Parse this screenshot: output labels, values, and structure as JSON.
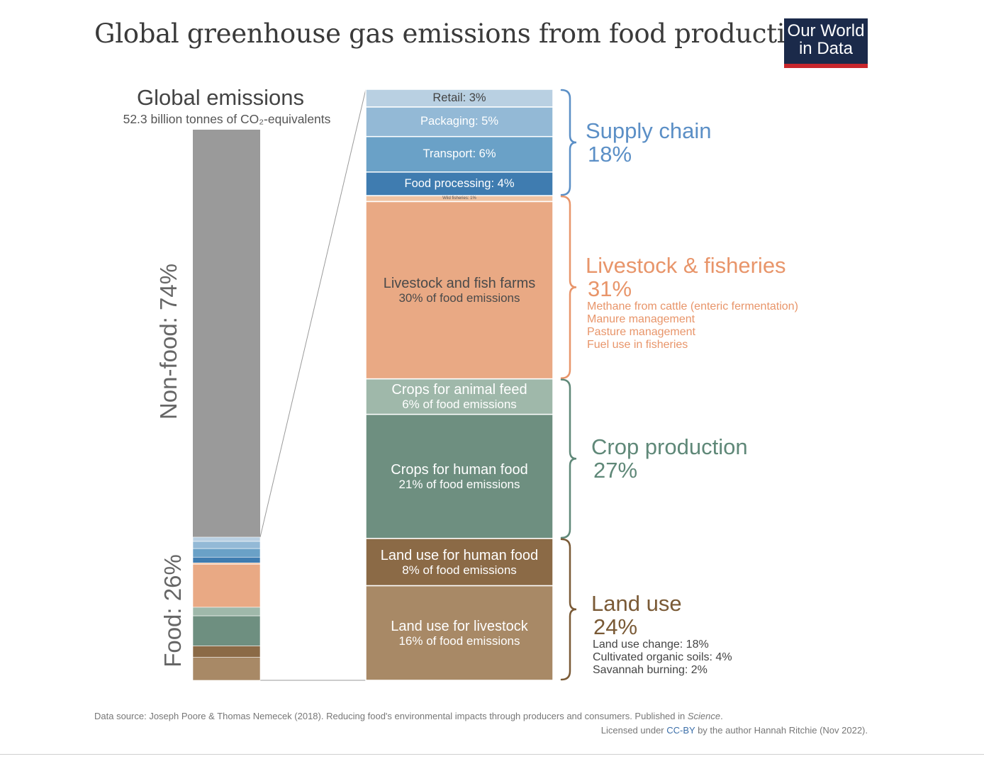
{
  "title": "Global greenhouse gas emissions from food production",
  "logo": {
    "line1": "Our World",
    "line2": "in Data"
  },
  "chart_data": {
    "type": "bar",
    "title": "Global greenhouse gas emissions from food production",
    "global": {
      "title": "Global emissions",
      "subtitle": "52.3 billion tonnes of CO₂-equivalents",
      "nonfood_label": "Non-food: 74%",
      "food_label": "Food: 26%",
      "nonfood_pct": 74,
      "food_pct": 26
    },
    "segments": [
      {
        "name": "Retail",
        "label": "Retail: 3%",
        "value": 3,
        "color": "#b9d0e2",
        "text_color": "#444444"
      },
      {
        "name": "Packaging",
        "label": "Packaging: 5%",
        "value": 5,
        "color": "#93b9d6",
        "text_color": "#ffffff"
      },
      {
        "name": "Transport",
        "label": "Transport: 6%",
        "value": 6,
        "color": "#6aa1c7",
        "text_color": "#ffffff"
      },
      {
        "name": "Food processing",
        "label": "Food processing: 4%",
        "value": 4,
        "color": "#3f7cb0",
        "text_color": "#ffffff"
      },
      {
        "name": "Wild fisheries",
        "label": "Wild fisheries: 1%",
        "value": 1,
        "color": "#f0c3a2",
        "text_color": "#555555"
      },
      {
        "name": "Livestock and fish farms",
        "label": "Livestock and fish farms",
        "sub": "30% of food emissions",
        "value": 30,
        "color": "#e9a984",
        "text_color": "#4a4a4a"
      },
      {
        "name": "Crops for animal feed",
        "label": "Crops for animal feed",
        "sub": "6% of food emissions",
        "value": 6,
        "color": "#9fb8aa",
        "text_color": "#ffffff"
      },
      {
        "name": "Crops for human food",
        "label": "Crops for human food",
        "sub": "21% of food emissions",
        "value": 21,
        "color": "#6e8f80",
        "text_color": "#ffffff"
      },
      {
        "name": "Land use for human food",
        "label": "Land use for human food",
        "sub": "8% of food emissions",
        "value": 8,
        "color": "#8b6a46",
        "text_color": "#ffffff"
      },
      {
        "name": "Land use for livestock",
        "label": "Land use for livestock",
        "sub": "16% of food emissions",
        "value": 16,
        "color": "#a88966",
        "text_color": "#ffffff"
      }
    ],
    "nonfood_color": "#9a9a9a",
    "groups": [
      {
        "name": "Supply chain",
        "pct": "18%",
        "color": "#5b8fc6",
        "details": []
      },
      {
        "name": "Livestock & fisheries",
        "pct": "31%",
        "color": "#e8956a",
        "details": [
          "Methane from cattle (enteric fermentation)",
          "Manure management",
          "Pasture management",
          "Fuel use in fisheries"
        ]
      },
      {
        "name": "Crop production",
        "pct": "27%",
        "color": "#5f8878",
        "details": []
      },
      {
        "name": "Land use",
        "pct": "24%",
        "color": "#7a5a36",
        "detail_color": "#444444",
        "details": [
          "Land use change: 18%",
          "Cultivated organic soils: 4%",
          "Savannah burning: 2%"
        ]
      }
    ]
  },
  "footer": {
    "source_prefix": "Data source: Joseph Poore & Thomas Nemecek (2018). Reducing food's environmental impacts through producers and consumers. Published in ",
    "source_journal": "Science",
    "source_suffix": ".",
    "license_prefix": "Licensed under ",
    "license_link": "CC-BY",
    "license_suffix": " by the author Hannah Ritchie (Nov 2022)."
  }
}
